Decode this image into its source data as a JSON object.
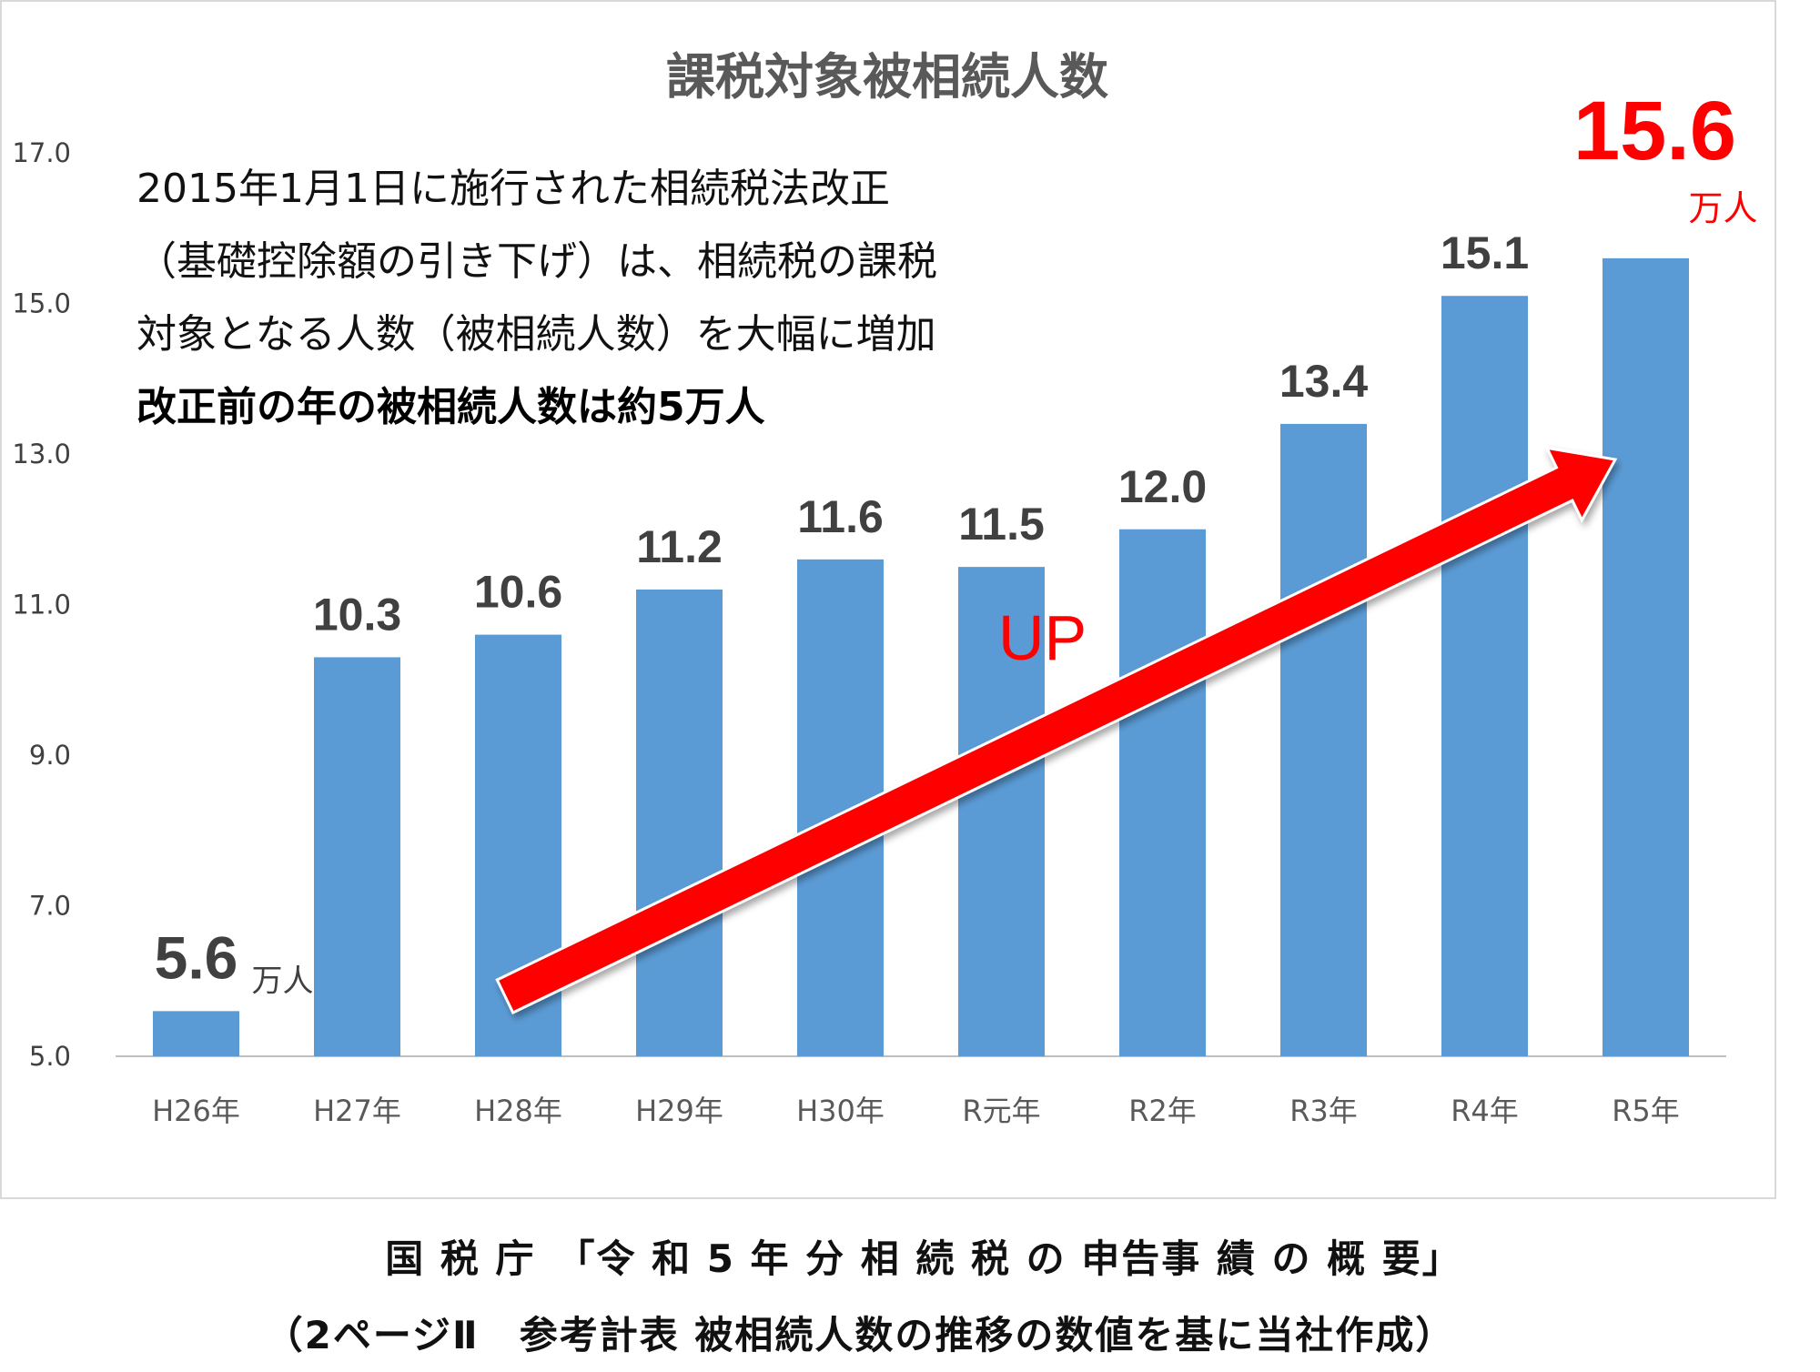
{
  "chart_data": {
    "type": "bar",
    "title": "課税対象被相続人数",
    "categories": [
      "H26年",
      "H27年",
      "H28年",
      "H29年",
      "H30年",
      "R元年",
      "R2年",
      "R3年",
      "R4年",
      "R5年"
    ],
    "values": [
      5.6,
      10.3,
      10.6,
      11.2,
      11.6,
      11.5,
      12.0,
      13.4,
      15.1,
      15.6
    ],
    "value_labels": [
      "5.6",
      "10.3",
      "10.6",
      "11.2",
      "11.6",
      "11.5",
      "12.0",
      "13.4",
      "15.1",
      "15.6"
    ],
    "yticks": [
      "5.0",
      "7.0",
      "9.0",
      "11.0",
      "13.0",
      "15.0",
      "17.0"
    ],
    "ylim": [
      5.0,
      17.0
    ],
    "grid": false,
    "bar_color": "#5b9bd5",
    "unit_label": "万人",
    "unit_first": "万人",
    "unit_last": "万人",
    "arrow_label": "UP",
    "arrow_color": "#ff0000",
    "highlight_color": "#ff0000"
  },
  "annotation": {
    "line1": "2015年1月1日に施行された相続税法改正",
    "line2": "（基礎控除額の引き下げ）は、相続税の課税",
    "line3": "対象となる人数（被相続人数）を大幅に増加",
    "line4": "改正前の年の被相続人数は約5万人"
  },
  "source": {
    "line1": "国 税 庁　「令 和 5 年 分 相 続 税 の 申告事 績 の 概 要」",
    "line2": "（2ページⅡ　参考計表 被相続人数の推移の数値を基に当社作成）"
  }
}
